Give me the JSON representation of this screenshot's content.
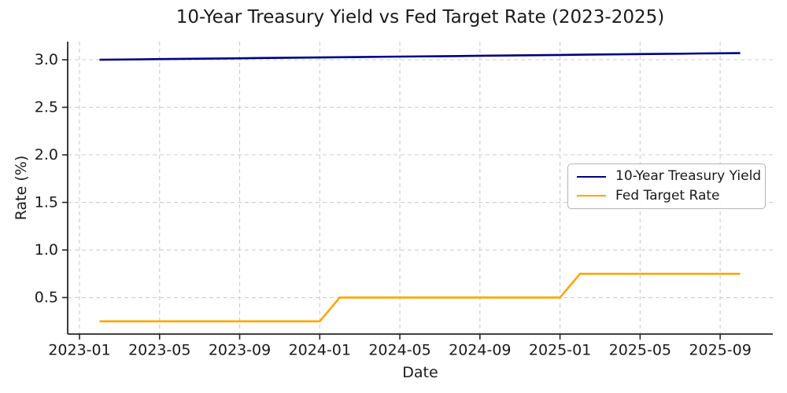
{
  "chart": {
    "title": "10-Year Treasury Yield vs Fed Target Rate (2023-2025)",
    "xlabel": "Date",
    "ylabel": "Rate (%)"
  },
  "legend": {
    "entries": [
      {
        "label": "10-Year Treasury Yield",
        "color": "#000080"
      },
      {
        "label": "Fed Target Rate",
        "color": "#FFA500"
      }
    ]
  },
  "chart_data": {
    "type": "line",
    "title": "10-Year Treasury Yield vs Fed Target Rate (2023-2025)",
    "xlabel": "Date",
    "ylabel": "Rate (%)",
    "x": [
      "2023-02",
      "2023-03",
      "2023-04",
      "2023-05",
      "2023-06",
      "2023-07",
      "2023-08",
      "2023-09",
      "2023-10",
      "2023-11",
      "2023-12",
      "2024-01",
      "2024-02",
      "2024-03",
      "2024-04",
      "2024-05",
      "2024-06",
      "2024-07",
      "2024-08",
      "2024-09",
      "2024-10",
      "2024-11",
      "2024-12",
      "2025-01",
      "2025-02",
      "2025-03",
      "2025-04",
      "2025-05",
      "2025-06",
      "2025-07",
      "2025-08",
      "2025-09",
      "2025-10"
    ],
    "series": [
      {
        "name": "10-Year Treasury Yield",
        "color": "#000080",
        "values": [
          3.0,
          3.002,
          3.004,
          3.007,
          3.009,
          3.011,
          3.013,
          3.015,
          3.018,
          3.02,
          3.022,
          3.024,
          3.026,
          3.028,
          3.031,
          3.033,
          3.035,
          3.037,
          3.039,
          3.042,
          3.044,
          3.046,
          3.048,
          3.05,
          3.053,
          3.055,
          3.057,
          3.059,
          3.061,
          3.063,
          3.066,
          3.068,
          3.07
        ]
      },
      {
        "name": "Fed Target Rate",
        "color": "#FFA500",
        "values": [
          0.25,
          0.25,
          0.25,
          0.25,
          0.25,
          0.25,
          0.25,
          0.25,
          0.25,
          0.25,
          0.25,
          0.25,
          0.5,
          0.5,
          0.5,
          0.5,
          0.5,
          0.5,
          0.5,
          0.5,
          0.5,
          0.5,
          0.5,
          0.5,
          0.75,
          0.75,
          0.75,
          0.75,
          0.75,
          0.75,
          0.75,
          0.75,
          0.75
        ]
      }
    ],
    "xticks": [
      "2023-01",
      "2023-05",
      "2023-09",
      "2024-01",
      "2024-05",
      "2024-09",
      "2025-01",
      "2025-05",
      "2025-09"
    ],
    "yticks": [
      0.5,
      1.0,
      1.5,
      2.0,
      2.5,
      3.0
    ],
    "ylim": [
      0.116,
      3.19
    ],
    "xlim_months": [
      -0.59,
      34.63
    ],
    "grid": true,
    "legend_position": "center right",
    "colors": {
      "grid": "#cccccc",
      "spine": "#262626",
      "tick_text": "#1a1a1a"
    }
  }
}
